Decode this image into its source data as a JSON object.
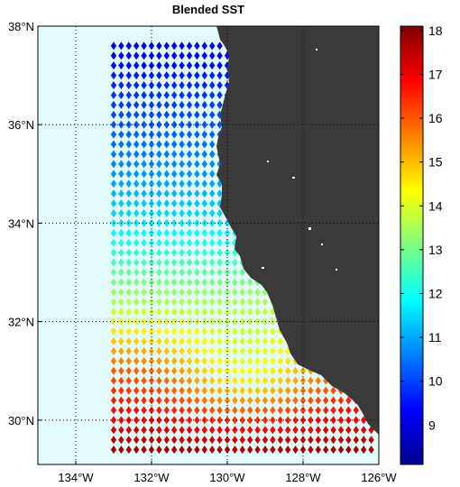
{
  "chart_data": {
    "type": "heatmap",
    "title": "Blended SST",
    "xlabel": "",
    "ylabel": "",
    "x_ticks": [
      "134°W",
      "132°W",
      "130°W",
      "128°W",
      "126°W"
    ],
    "y_ticks": [
      "30°N",
      "32°N",
      "34°N",
      "36°N",
      "38°N"
    ],
    "xlim_lon": [
      -135,
      -126
    ],
    "ylim_lat": [
      29.1,
      38
    ],
    "grid": true,
    "grid_lon": [
      -134,
      -132,
      -130,
      -128,
      -126
    ],
    "grid_lat": [
      30,
      32,
      34,
      36,
      38
    ],
    "data_lon_range": [
      -133,
      -126.2
    ],
    "data_lat_range": [
      29.4,
      37.7
    ],
    "colorbar": {
      "label": "",
      "range": [
        8.1,
        18.1
      ],
      "ticks": [
        "9",
        "10",
        "11",
        "12",
        "13",
        "14",
        "15",
        "16",
        "17",
        "18"
      ],
      "colormap": "jet"
    },
    "sst_by_latitude": [
      {
        "lat": 37.7,
        "sst": 9.0
      },
      {
        "lat": 37.0,
        "sst": 9.6
      },
      {
        "lat": 36.0,
        "sst": 10.2
      },
      {
        "lat": 35.0,
        "sst": 10.8
      },
      {
        "lat": 34.0,
        "sst": 11.6
      },
      {
        "lat": 33.0,
        "sst": 12.8
      },
      {
        "lat": 32.0,
        "sst": 14.2
      },
      {
        "lat": 31.0,
        "sst": 16.0
      },
      {
        "lat": 30.0,
        "sst": 17.0
      },
      {
        "lat": 29.4,
        "sst": 17.8
      }
    ],
    "colors": {
      "ocean": "#e4fbfb",
      "land": "#3a3a3a",
      "grid": "#000000"
    }
  }
}
